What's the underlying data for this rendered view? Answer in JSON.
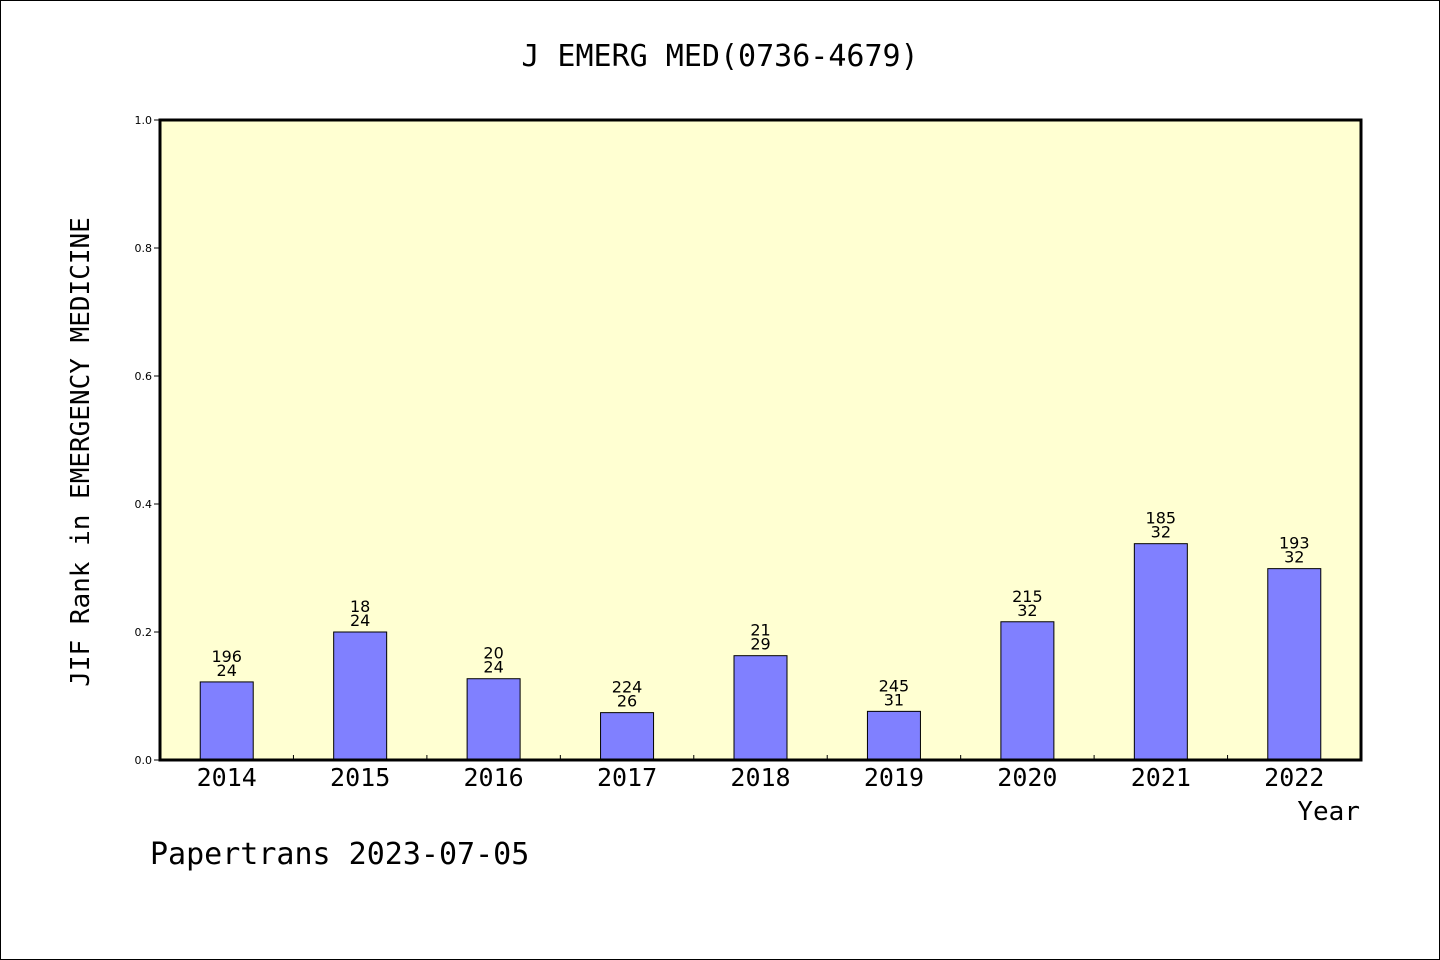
{
  "chart_data": {
    "type": "bar",
    "title": "J EMERG MED(0736-4679)",
    "xlabel": "Year",
    "ylabel": "JIF Rank in EMERGENCY MEDICINE",
    "ylim": [
      0,
      1.0
    ],
    "yticks": [
      "0.0",
      "0.2",
      "0.4",
      "0.6",
      "0.8",
      "1.0"
    ],
    "categories": [
      "2014",
      "2015",
      "2016",
      "2017",
      "2018",
      "2019",
      "2020",
      "2021",
      "2022"
    ],
    "values": [
      0.122,
      0.2,
      0.127,
      0.074,
      0.163,
      0.076,
      0.216,
      0.338,
      0.299
    ],
    "labels_top": [
      "196",
      "18",
      "20",
      "224",
      "21",
      "245",
      "215",
      "185",
      "193"
    ],
    "labels_bottom": [
      "24",
      "24",
      "24",
      "26",
      "29",
      "31",
      "32",
      "32",
      "32"
    ],
    "colors": {
      "plot_bg": "#ffffd2",
      "bar": "#8080ff"
    },
    "grid": false
  },
  "footer": "Papertrans 2023-07-05"
}
